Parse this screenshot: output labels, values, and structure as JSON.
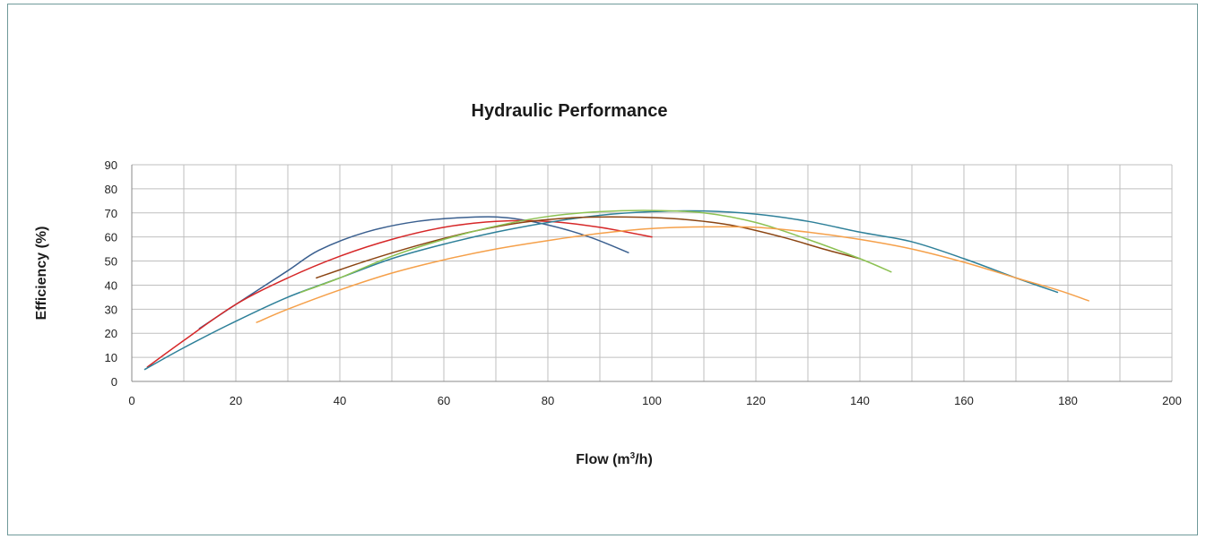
{
  "chart_data": {
    "type": "line",
    "title": "Hydraulic Performance",
    "xlabel": "Flow (m³/h)",
    "xlabel_main": "Flow  (m",
    "xlabel_sup": "3",
    "xlabel_tail": "/h)",
    "ylabel": "Efficiency (%)",
    "xlim": [
      0,
      200
    ],
    "ylim": [
      0,
      90
    ],
    "xticks": [
      0,
      20,
      40,
      60,
      80,
      100,
      120,
      140,
      160,
      180,
      200
    ],
    "yticks": [
      0,
      10,
      20,
      30,
      40,
      50,
      60,
      70,
      80,
      90
    ],
    "grid": true,
    "legend": "none",
    "series": [
      {
        "color": "#3a5f8f",
        "x": [
          13,
          20,
          30,
          36,
          45,
          55,
          65,
          72,
          80,
          88,
          95.5
        ],
        "y": [
          22,
          32,
          46,
          54.5,
          62,
          66.5,
          68.2,
          68,
          65,
          60,
          53.5
        ]
      },
      {
        "color": "#d62728",
        "x": [
          3,
          10,
          20,
          30,
          40,
          50,
          60,
          70,
          80,
          90,
          100
        ],
        "y": [
          6,
          17,
          32,
          43,
          52,
          59,
          64,
          66.5,
          66.5,
          64,
          60
        ]
      },
      {
        "color": "#2e8099",
        "x": [
          2.5,
          10,
          20,
          30,
          40,
          50,
          60,
          70,
          80,
          90,
          100,
          110,
          120,
          130,
          140,
          150,
          160,
          170,
          178
        ],
        "y": [
          5,
          14,
          25,
          35,
          43,
          51,
          57,
          62,
          66,
          69,
          70.5,
          70.8,
          69.5,
          66.5,
          62,
          58,
          51,
          43,
          37
        ]
      },
      {
        "color": "#8b4513",
        "x": [
          35.5,
          45,
          55,
          65,
          75,
          85,
          95,
          105,
          115,
          125,
          133,
          140
        ],
        "y": [
          43,
          50,
          56.5,
          62,
          66,
          68,
          68.3,
          67.5,
          65,
          60,
          55,
          51
        ]
      },
      {
        "color": "#8cc152",
        "x": [
          32.5,
          40,
          50,
          60,
          70,
          80,
          90,
          100,
          110,
          120,
          130,
          140,
          146
        ],
        "y": [
          37,
          43,
          52,
          59,
          64.5,
          68.5,
          70.5,
          71,
          70,
          66,
          59,
          51,
          45.5
        ]
      },
      {
        "color": "#f5a04a",
        "x": [
          24,
          30,
          40,
          50,
          60,
          70,
          80,
          90,
          100,
          110,
          120,
          130,
          140,
          150,
          160,
          170,
          178,
          184
        ],
        "y": [
          24.5,
          30,
          38,
          45,
          50.5,
          55,
          58.5,
          61.5,
          63.5,
          64.2,
          64,
          62,
          59,
          55,
          49.5,
          43,
          38,
          33.5
        ]
      }
    ]
  }
}
